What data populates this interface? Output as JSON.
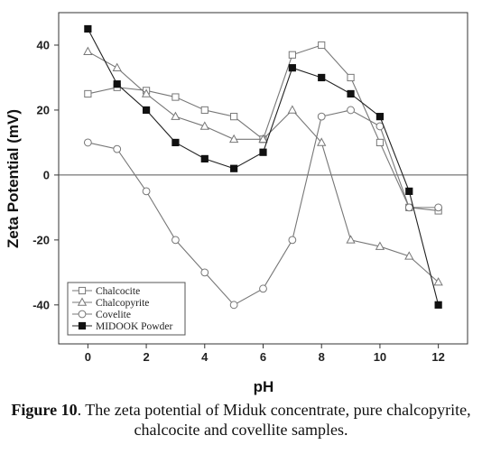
{
  "chart_data": {
    "type": "line",
    "xlabel": "pH",
    "ylabel": "Zeta Potential (mV)",
    "xlim": [
      -1,
      13
    ],
    "ylim": [
      -52,
      50
    ],
    "xticks": [
      0,
      2,
      4,
      6,
      8,
      10,
      12
    ],
    "yticks": [
      -40,
      -20,
      0,
      20,
      40
    ],
    "zero_line": true,
    "grid": false,
    "legend_position": "bottom-left",
    "series": [
      {
        "name": "Chalcocite",
        "marker": "open-square",
        "color": "#777777",
        "x": [
          0,
          1,
          2,
          3,
          4,
          5,
          6,
          7,
          8,
          9,
          10,
          11,
          12
        ],
        "y": [
          25,
          27,
          26,
          24,
          20,
          18,
          11,
          37,
          40,
          30,
          10,
          -10,
          -11
        ]
      },
      {
        "name": "Chalcopyrite",
        "marker": "open-triangle",
        "color": "#777777",
        "x": [
          0,
          1,
          2,
          3,
          4,
          5,
          6,
          7,
          8,
          9,
          10,
          11,
          12
        ],
        "y": [
          38,
          33,
          25,
          18,
          15,
          11,
          11,
          20,
          10,
          -20,
          -22,
          -25,
          -33
        ]
      },
      {
        "name": "Covelite",
        "marker": "open-circle",
        "color": "#777777",
        "x": [
          0,
          1,
          2,
          3,
          4,
          5,
          6,
          7,
          8,
          9,
          10,
          11,
          12
        ],
        "y": [
          10,
          8,
          -5,
          -20,
          -30,
          -40,
          -35,
          -20,
          18,
          20,
          15,
          -10,
          -10
        ]
      },
      {
        "name": "MIDOOK Powder",
        "marker": "filled-square",
        "color": "#222222",
        "x": [
          0,
          1,
          2,
          3,
          4,
          5,
          6,
          7,
          8,
          9,
          10,
          11,
          12
        ],
        "y": [
          45,
          28,
          20,
          10,
          5,
          2,
          7,
          33,
          30,
          25,
          18,
          -5,
          -40
        ]
      }
    ]
  },
  "caption": {
    "label": "Figure 10",
    "text": ". The zeta potential of Miduk concentrate, pure chalcopyrite, chalcocite and covellite samples."
  }
}
